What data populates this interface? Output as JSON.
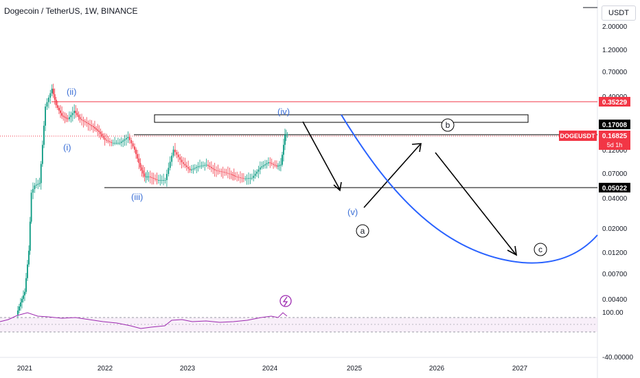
{
  "header": {
    "title": "Dogecoin / TetherUS, 1W, BINANCE",
    "currency": "USDT"
  },
  "chart_data": {
    "type": "line",
    "price_scale": "log",
    "price_ticks": [
      "2.00000",
      "1.20000",
      "0.70000",
      "0.40000",
      "0.12000",
      "0.07000",
      "0.04000",
      "0.02000",
      "0.01200",
      "0.00700",
      "0.00400"
    ],
    "x_ticks": [
      "2021",
      "2022",
      "2023",
      "2024",
      "2025",
      "2026",
      "2027"
    ],
    "price_labels": [
      {
        "name": "resistance-label",
        "value": "0.35229",
        "color": "#f23645"
      },
      {
        "name": "box-level-label",
        "value": "0.17008",
        "color": "#000000"
      },
      {
        "name": "doge-symbol-label",
        "value": "DOGEUSDT",
        "color": "#f23645"
      },
      {
        "name": "last-price-label",
        "value": "0.16825",
        "color": "#f23645"
      },
      {
        "name": "countdown-label",
        "value": "5d 1h",
        "color": "#f23645"
      },
      {
        "name": "support-label",
        "value": "0.05022",
        "color": "#000000"
      }
    ],
    "elliott_waves": [
      "(i)",
      "(ii)",
      "(iii)",
      "(iv)",
      "(v)"
    ],
    "correction_waves": [
      "a",
      "b",
      "c"
    ],
    "rsi_ticks": [
      "100.00",
      "-40.00000"
    ],
    "price_path": [
      [
        2020.9,
        0.0028
      ],
      [
        2020.95,
        0.0037
      ],
      [
        2021.0,
        0.0047
      ],
      [
        2021.05,
        0.012
      ],
      [
        2021.08,
        0.045
      ],
      [
        2021.12,
        0.053
      ],
      [
        2021.18,
        0.056
      ],
      [
        2021.25,
        0.32
      ],
      [
        2021.33,
        0.48
      ],
      [
        2021.38,
        0.33
      ],
      [
        2021.45,
        0.26
      ],
      [
        2021.52,
        0.24
      ],
      [
        2021.6,
        0.29
      ],
      [
        2021.67,
        0.24
      ],
      [
        2021.75,
        0.22
      ],
      [
        2021.83,
        0.2
      ],
      [
        2021.9,
        0.18
      ],
      [
        2021.97,
        0.15
      ],
      [
        2022.05,
        0.14
      ],
      [
        2022.15,
        0.14
      ],
      [
        2022.25,
        0.16
      ],
      [
        2022.33,
        0.12
      ],
      [
        2022.4,
        0.08
      ],
      [
        2022.45,
        0.065
      ],
      [
        2022.5,
        0.065
      ],
      [
        2022.6,
        0.06
      ],
      [
        2022.7,
        0.06
      ],
      [
        2022.8,
        0.12
      ],
      [
        2022.9,
        0.09
      ],
      [
        2023.0,
        0.075
      ],
      [
        2023.1,
        0.082
      ],
      [
        2023.2,
        0.085
      ],
      [
        2023.3,
        0.075
      ],
      [
        2023.4,
        0.072
      ],
      [
        2023.5,
        0.068
      ],
      [
        2023.55,
        0.065
      ],
      [
        2023.65,
        0.062
      ],
      [
        2023.75,
        0.063
      ],
      [
        2023.85,
        0.08
      ],
      [
        2023.95,
        0.09
      ],
      [
        2024.05,
        0.082
      ],
      [
        2024.1,
        0.085
      ],
      [
        2024.15,
        0.168
      ],
      [
        2024.18,
        0.17
      ]
    ]
  }
}
